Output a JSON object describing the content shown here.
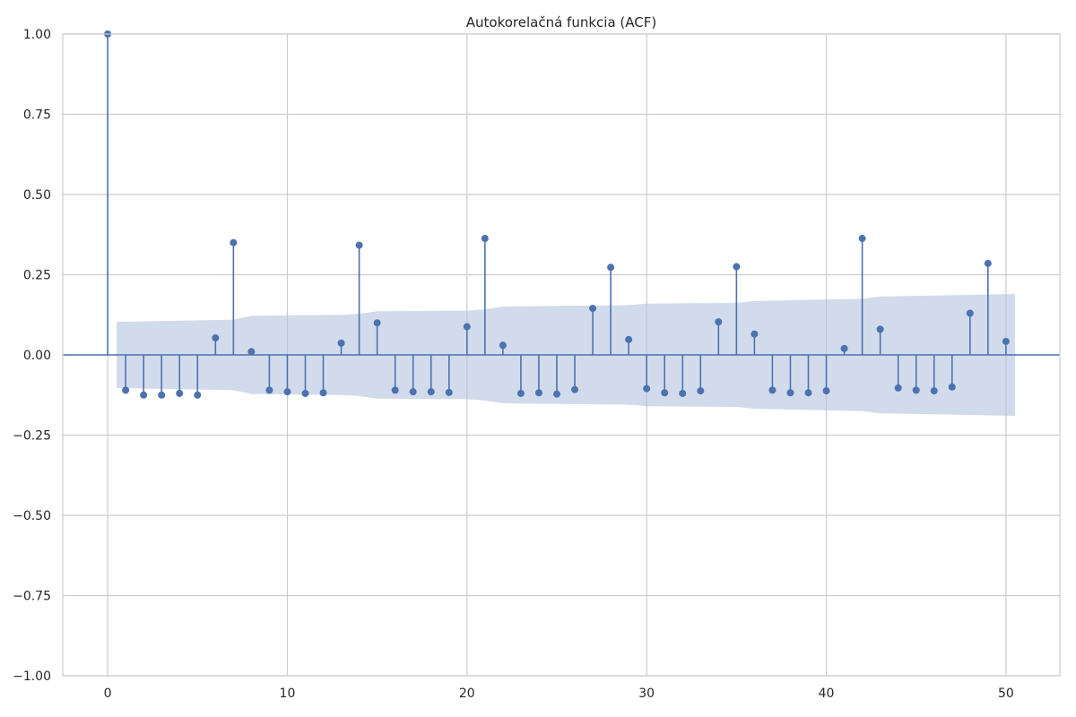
{
  "chart_data": {
    "type": "stem",
    "title": "Autokorelačná funkcia (ACF)",
    "xlabel": "",
    "ylabel": "",
    "xlim": [
      -2.5,
      53
    ],
    "ylim": [
      -1.0,
      1.0
    ],
    "grid": true,
    "x_ticks": [
      0,
      10,
      20,
      30,
      40,
      50
    ],
    "x_tick_labels": [
      "0",
      "10",
      "20",
      "30",
      "40",
      "50"
    ],
    "y_ticks": [
      1.0,
      0.75,
      0.5,
      0.25,
      0.0,
      -0.25,
      -0.5,
      -0.75,
      -1.0
    ],
    "y_tick_labels": [
      "1.00",
      "0.75",
      "0.50",
      "0.25",
      "0.00",
      "−0.25",
      "−0.50",
      "−0.75",
      "−1.00"
    ],
    "lags": [
      0,
      1,
      2,
      3,
      4,
      5,
      6,
      7,
      8,
      9,
      10,
      11,
      12,
      13,
      14,
      15,
      16,
      17,
      18,
      19,
      20,
      21,
      22,
      23,
      24,
      25,
      26,
      27,
      28,
      29,
      30,
      31,
      32,
      33,
      34,
      35,
      36,
      37,
      38,
      39,
      40,
      41,
      42,
      43,
      44,
      45,
      46,
      47,
      48,
      49,
      50
    ],
    "values": [
      1.0,
      -0.11,
      -0.125,
      -0.125,
      -0.12,
      -0.125,
      0.053,
      0.35,
      0.01,
      -0.11,
      -0.115,
      -0.12,
      -0.118,
      0.037,
      0.342,
      0.1,
      -0.11,
      -0.115,
      -0.115,
      -0.117,
      0.088,
      0.363,
      0.03,
      -0.12,
      -0.118,
      -0.122,
      -0.108,
      0.145,
      0.273,
      0.048,
      -0.105,
      -0.118,
      -0.12,
      -0.112,
      0.103,
      0.275,
      0.065,
      -0.11,
      -0.118,
      -0.118,
      -0.112,
      0.02,
      0.363,
      0.08,
      -0.103,
      -0.11,
      -0.112,
      -0.1,
      0.13,
      0.285,
      0.042
    ],
    "confidence_band": {
      "lags": [
        0.5,
        7,
        8,
        13,
        14,
        15,
        20,
        21,
        22,
        29,
        30,
        35,
        36,
        42,
        43,
        50.5
      ],
      "upper": [
        0.103,
        0.11,
        0.122,
        0.125,
        0.128,
        0.136,
        0.138,
        0.142,
        0.151,
        0.155,
        0.16,
        0.162,
        0.168,
        0.175,
        0.182,
        0.19
      ]
    },
    "colors": {
      "stem": "#4c72b0",
      "band": "#b4c3de",
      "grid": "#cccccc",
      "zero_line": "#4c72b0"
    }
  }
}
